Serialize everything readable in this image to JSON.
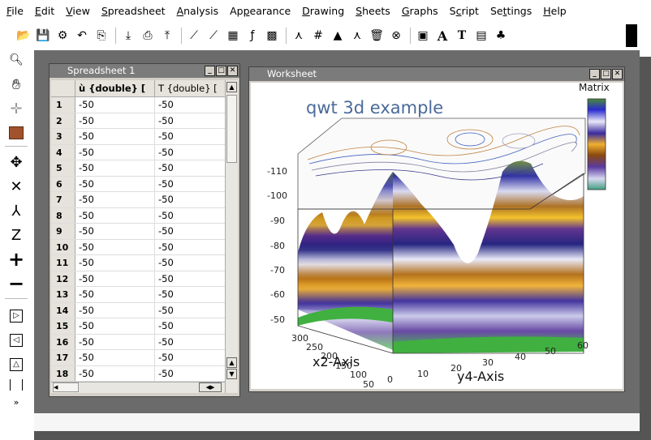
{
  "menubar": [
    {
      "pre": "",
      "ul": "F",
      "post": "ile"
    },
    {
      "pre": "",
      "ul": "E",
      "post": "dit"
    },
    {
      "pre": "",
      "ul": "V",
      "post": "iew"
    },
    {
      "pre": "",
      "ul": "S",
      "post": "preadsheet"
    },
    {
      "pre": "",
      "ul": "A",
      "post": "nalysis"
    },
    {
      "pre": "Ap",
      "ul": "p",
      "post": "earance"
    },
    {
      "pre": "",
      "ul": "D",
      "post": "rawing"
    },
    {
      "pre": "",
      "ul": "S",
      "post": "heets"
    },
    {
      "pre": "",
      "ul": "G",
      "post": "raphs"
    },
    {
      "pre": "S",
      "ul": "c",
      "post": "ript"
    },
    {
      "pre": "Se",
      "ul": "t",
      "post": "tings"
    },
    {
      "pre": "",
      "ul": "H",
      "post": "elp"
    }
  ],
  "toolbar_icons": [
    "open-icon",
    "save-icon",
    "settings-icon",
    "undo-icon",
    "copy-icon",
    "import-icon",
    "print-icon",
    "export-icon",
    "plot-icon",
    "plot2-icon",
    "table-icon",
    "function-icon",
    "matrix-icon",
    "layer-icon",
    "grid-icon",
    "rescale-icon",
    "arrow-icon",
    "trash-icon",
    "close-icon",
    "image-icon",
    "text-bold-icon",
    "text-icon",
    "note-icon",
    "tree-icon"
  ],
  "spreadsheet": {
    "title": "Spreadsheet 1",
    "col1": "ù {double} [",
    "col2": "T {double} [",
    "rows": [
      {
        "n": "1",
        "a": "-50",
        "b": "-50"
      },
      {
        "n": "2",
        "a": "-50",
        "b": "-50"
      },
      {
        "n": "3",
        "a": "-50",
        "b": "-50"
      },
      {
        "n": "4",
        "a": "-50",
        "b": "-50"
      },
      {
        "n": "5",
        "a": "-50",
        "b": "-50"
      },
      {
        "n": "6",
        "a": "-50",
        "b": "-50"
      },
      {
        "n": "7",
        "a": "-50",
        "b": "-50"
      },
      {
        "n": "8",
        "a": "-50",
        "b": "-50"
      },
      {
        "n": "9",
        "a": "-50",
        "b": "-50"
      },
      {
        "n": "10",
        "a": "-50",
        "b": "-50"
      },
      {
        "n": "11",
        "a": "-50",
        "b": "-50"
      },
      {
        "n": "12",
        "a": "-50",
        "b": "-50"
      },
      {
        "n": "13",
        "a": "-50",
        "b": "-50"
      },
      {
        "n": "14",
        "a": "-50",
        "b": "-50"
      },
      {
        "n": "15",
        "a": "-50",
        "b": "-50"
      },
      {
        "n": "16",
        "a": "-50",
        "b": "-50"
      },
      {
        "n": "17",
        "a": "-50",
        "b": "-50"
      },
      {
        "n": "18",
        "a": "-50",
        "b": "-50"
      }
    ]
  },
  "worksheet": {
    "title": "Worksheet",
    "plot_title": "qwt 3d example",
    "legend_title": "Matrix",
    "z_ticks": [
      "-110",
      "-100",
      "-90",
      "-80",
      "-70",
      "-60",
      "-50"
    ],
    "x_ticks": [
      "300",
      "250",
      "200",
      "150",
      "100",
      "50"
    ],
    "y_ticks": [
      "0",
      "10",
      "20",
      "30",
      "40",
      "50",
      "60"
    ],
    "x_label": "x2-Axis",
    "y_label": "y4-Axis"
  }
}
